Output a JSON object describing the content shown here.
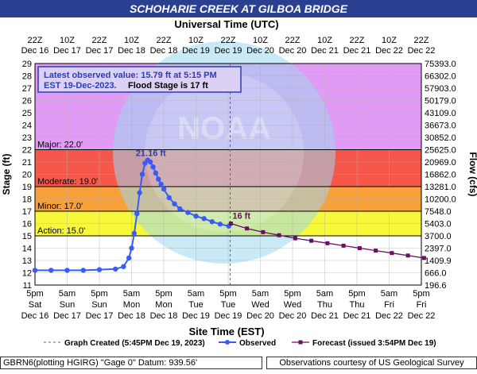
{
  "page_title": "SCHOHARIE CREEK AT GILBOA BRIDGE",
  "footer": {
    "left": "GBRN6(plotting HGIRG) \"Gage 0\" Datum:  939.56'",
    "right": "Observations courtesy of US Geological Survey"
  },
  "chart_data": {
    "type": "line",
    "title": "SCHOHARIE CREEK AT GILBOA BRIDGE",
    "top_axis_title": "Universal Time (UTC)",
    "xlabel": "Site Time (EST)",
    "ylabel": "Stage (ft)",
    "y2label": "Flow (cfs)",
    "ylim": [
      11,
      29
    ],
    "yticks": [
      11,
      12,
      13,
      14,
      15,
      16,
      17,
      18,
      19,
      20,
      21,
      22,
      23,
      24,
      25,
      26,
      27,
      28,
      29
    ],
    "flow_ticks": [
      "196.6",
      "666.0",
      "1409.9",
      "2397.0",
      "3700.0",
      "5403.0",
      "7548.0",
      "10200.0",
      "13281.0",
      "16862.0",
      "20969.0",
      "25625.0",
      "30852.0",
      "36673.0",
      "43109.0",
      "50179.0",
      "57903.0",
      "66302.0",
      "75393.0"
    ],
    "x_ticks_bottom": [
      {
        "time": "5pm",
        "day": "Sat",
        "date": "Dec 16"
      },
      {
        "time": "5am",
        "day": "Sun",
        "date": "Dec 17"
      },
      {
        "time": "5pm",
        "day": "Sun",
        "date": "Dec 17"
      },
      {
        "time": "5am",
        "day": "Mon",
        "date": "Dec 18"
      },
      {
        "time": "5pm",
        "day": "Mon",
        "date": "Dec 18"
      },
      {
        "time": "5am",
        "day": "Tue",
        "date": "Dec 19"
      },
      {
        "time": "5pm",
        "day": "Tue",
        "date": "Dec 19"
      },
      {
        "time": "5am",
        "day": "Wed",
        "date": "Dec 20"
      },
      {
        "time": "5pm",
        "day": "Wed",
        "date": "Dec 20"
      },
      {
        "time": "5am",
        "day": "Thu",
        "date": "Dec 21"
      },
      {
        "time": "5pm",
        "day": "Thu",
        "date": "Dec 21"
      },
      {
        "time": "5am",
        "day": "Fri",
        "date": "Dec 22"
      },
      {
        "time": "5pm",
        "day": "Fri",
        "date": "Dec 22"
      }
    ],
    "x_ticks_top": [
      {
        "time": "22Z",
        "date": "Dec 16"
      },
      {
        "time": "10Z",
        "date": "Dec 17"
      },
      {
        "time": "22Z",
        "date": "Dec 17"
      },
      {
        "time": "10Z",
        "date": "Dec 18"
      },
      {
        "time": "22Z",
        "date": "Dec 18"
      },
      {
        "time": "10Z",
        "date": "Dec 19"
      },
      {
        "time": "22Z",
        "date": "Dec 19"
      },
      {
        "time": "10Z",
        "date": "Dec 20"
      },
      {
        "time": "22Z",
        "date": "Dec 20"
      },
      {
        "time": "10Z",
        "date": "Dec 21"
      },
      {
        "time": "22Z",
        "date": "Dec 21"
      },
      {
        "time": "10Z",
        "date": "Dec 22"
      },
      {
        "time": "22Z",
        "date": "Dec 22"
      }
    ],
    "flood_categories": [
      {
        "label": "Major: 22.0'",
        "from": 22,
        "to": 29,
        "color": "#e19bf5"
      },
      {
        "label": "Moderate: 19.0'",
        "from": 19,
        "to": 22,
        "color": "#f5584a"
      },
      {
        "label": "Minor: 17.0'",
        "from": 17,
        "to": 19,
        "color": "#f8a03a"
      },
      {
        "label": "Action: 15.0'",
        "from": 15,
        "to": 17,
        "color": "#f8f83a"
      }
    ],
    "latest_observation": {
      "line1": "Latest observed value: 15.79 ft at 5:15 PM",
      "line2a": "EST 19-Dec-2023.",
      "line2b": "Flood Stage is 17 ft"
    },
    "peak_label": "21.16 ft",
    "forecast_label": "16 ft",
    "graph_created_x": "2023-12-19 17:45",
    "series": [
      {
        "name": "Observed",
        "color": "#3a5cf5",
        "points": [
          [
            "2023-12-16 17:00",
            12.2
          ],
          [
            "2023-12-16 23:00",
            12.2
          ],
          [
            "2023-12-17 05:00",
            12.2
          ],
          [
            "2023-12-17 11:00",
            12.2
          ],
          [
            "2023-12-17 17:00",
            12.25
          ],
          [
            "2023-12-17 23:00",
            12.3
          ],
          [
            "2023-12-18 02:00",
            12.5
          ],
          [
            "2023-12-18 04:00",
            13.2
          ],
          [
            "2023-12-18 05:00",
            14.0
          ],
          [
            "2023-12-18 06:00",
            15.2
          ],
          [
            "2023-12-18 07:00",
            16.8
          ],
          [
            "2023-12-18 08:00",
            18.5
          ],
          [
            "2023-12-18 09:00",
            20.0
          ],
          [
            "2023-12-18 10:00",
            20.9
          ],
          [
            "2023-12-18 11:00",
            21.16
          ],
          [
            "2023-12-18 12:00",
            21.0
          ],
          [
            "2023-12-18 13:00",
            20.6
          ],
          [
            "2023-12-18 14:00",
            20.1
          ],
          [
            "2023-12-18 15:00",
            19.6
          ],
          [
            "2023-12-18 16:00",
            19.2
          ],
          [
            "2023-12-18 17:00",
            18.8
          ],
          [
            "2023-12-18 19:00",
            18.1
          ],
          [
            "2023-12-18 21:00",
            17.6
          ],
          [
            "2023-12-18 23:00",
            17.2
          ],
          [
            "2023-12-19 02:00",
            16.9
          ],
          [
            "2023-12-19 05:00",
            16.6
          ],
          [
            "2023-12-19 08:00",
            16.4
          ],
          [
            "2023-12-19 11:00",
            16.15
          ],
          [
            "2023-12-19 14:00",
            15.95
          ],
          [
            "2023-12-19 17:15",
            15.79
          ]
        ]
      },
      {
        "name": "Forecast (issued 3:54PM Dec 19)",
        "color": "#6a1060",
        "points": [
          [
            "2023-12-19 18:00",
            16.0
          ],
          [
            "2023-12-20 00:00",
            15.6
          ],
          [
            "2023-12-20 06:00",
            15.3
          ],
          [
            "2023-12-20 12:00",
            15.05
          ],
          [
            "2023-12-20 18:00",
            14.8
          ],
          [
            "2023-12-21 00:00",
            14.6
          ],
          [
            "2023-12-21 06:00",
            14.4
          ],
          [
            "2023-12-21 12:00",
            14.2
          ],
          [
            "2023-12-21 18:00",
            14.0
          ],
          [
            "2023-12-22 00:00",
            13.8
          ],
          [
            "2023-12-22 06:00",
            13.6
          ],
          [
            "2023-12-22 12:00",
            13.4
          ],
          [
            "2023-12-22 18:00",
            13.2
          ]
        ]
      }
    ],
    "legend": {
      "created": "Graph Created (5:45PM Dec 19, 2023)",
      "observed": "Observed",
      "forecast": "Forecast (issued 3:54PM Dec 19)"
    }
  }
}
